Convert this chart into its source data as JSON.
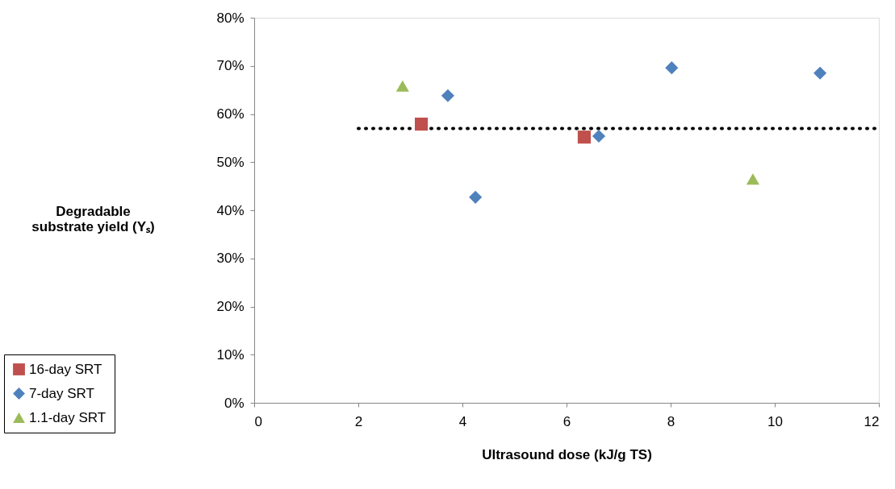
{
  "chart_data": {
    "type": "scatter",
    "xlabel": "Ultrasound dose (kJ/g TS)",
    "ylabel": "Degradable substrate yield (Yₛ)",
    "xlim": [
      0,
      12
    ],
    "xticks": [
      0,
      2,
      4,
      6,
      8,
      10,
      12
    ],
    "ylim": [
      0,
      80
    ],
    "yticks": [
      {
        "value": 0,
        "label": "0%"
      },
      {
        "value": 10,
        "label": "10%"
      },
      {
        "value": 20,
        "label": "20%"
      },
      {
        "value": 30,
        "label": "30%"
      },
      {
        "value": 40,
        "label": "40%"
      },
      {
        "value": 50,
        "label": "50%"
      },
      {
        "value": 60,
        "label": "60%"
      },
      {
        "value": 70,
        "label": "70%"
      },
      {
        "value": 80,
        "label": "80%"
      }
    ],
    "grid": false,
    "legend": "bottom left",
    "series": [
      {
        "name": "16-day SRT",
        "color": "#c0504d",
        "marker": "square",
        "x": [
          3.21,
          6.34
        ],
        "values": [
          57.9,
          55.2
        ]
      },
      {
        "name": "7-day SRT",
        "color": "#4f81bd",
        "marker": "diamond",
        "x": [
          3.72,
          4.25,
          6.62,
          8.02,
          10.87
        ],
        "values": [
          63.8,
          42.7,
          55.4,
          69.6,
          68.5
        ]
      },
      {
        "name": "1.1-day SRT",
        "color": "#9bbb59",
        "marker": "triangle",
        "x": [
          2.85,
          9.58
        ],
        "values": [
          65.8,
          46.5
        ]
      },
      {
        "type": "line",
        "color": "#000000",
        "line_style": "dotted",
        "marker": "none",
        "x": [
          2,
          12
        ],
        "values": [
          57,
          57
        ]
      }
    ]
  }
}
